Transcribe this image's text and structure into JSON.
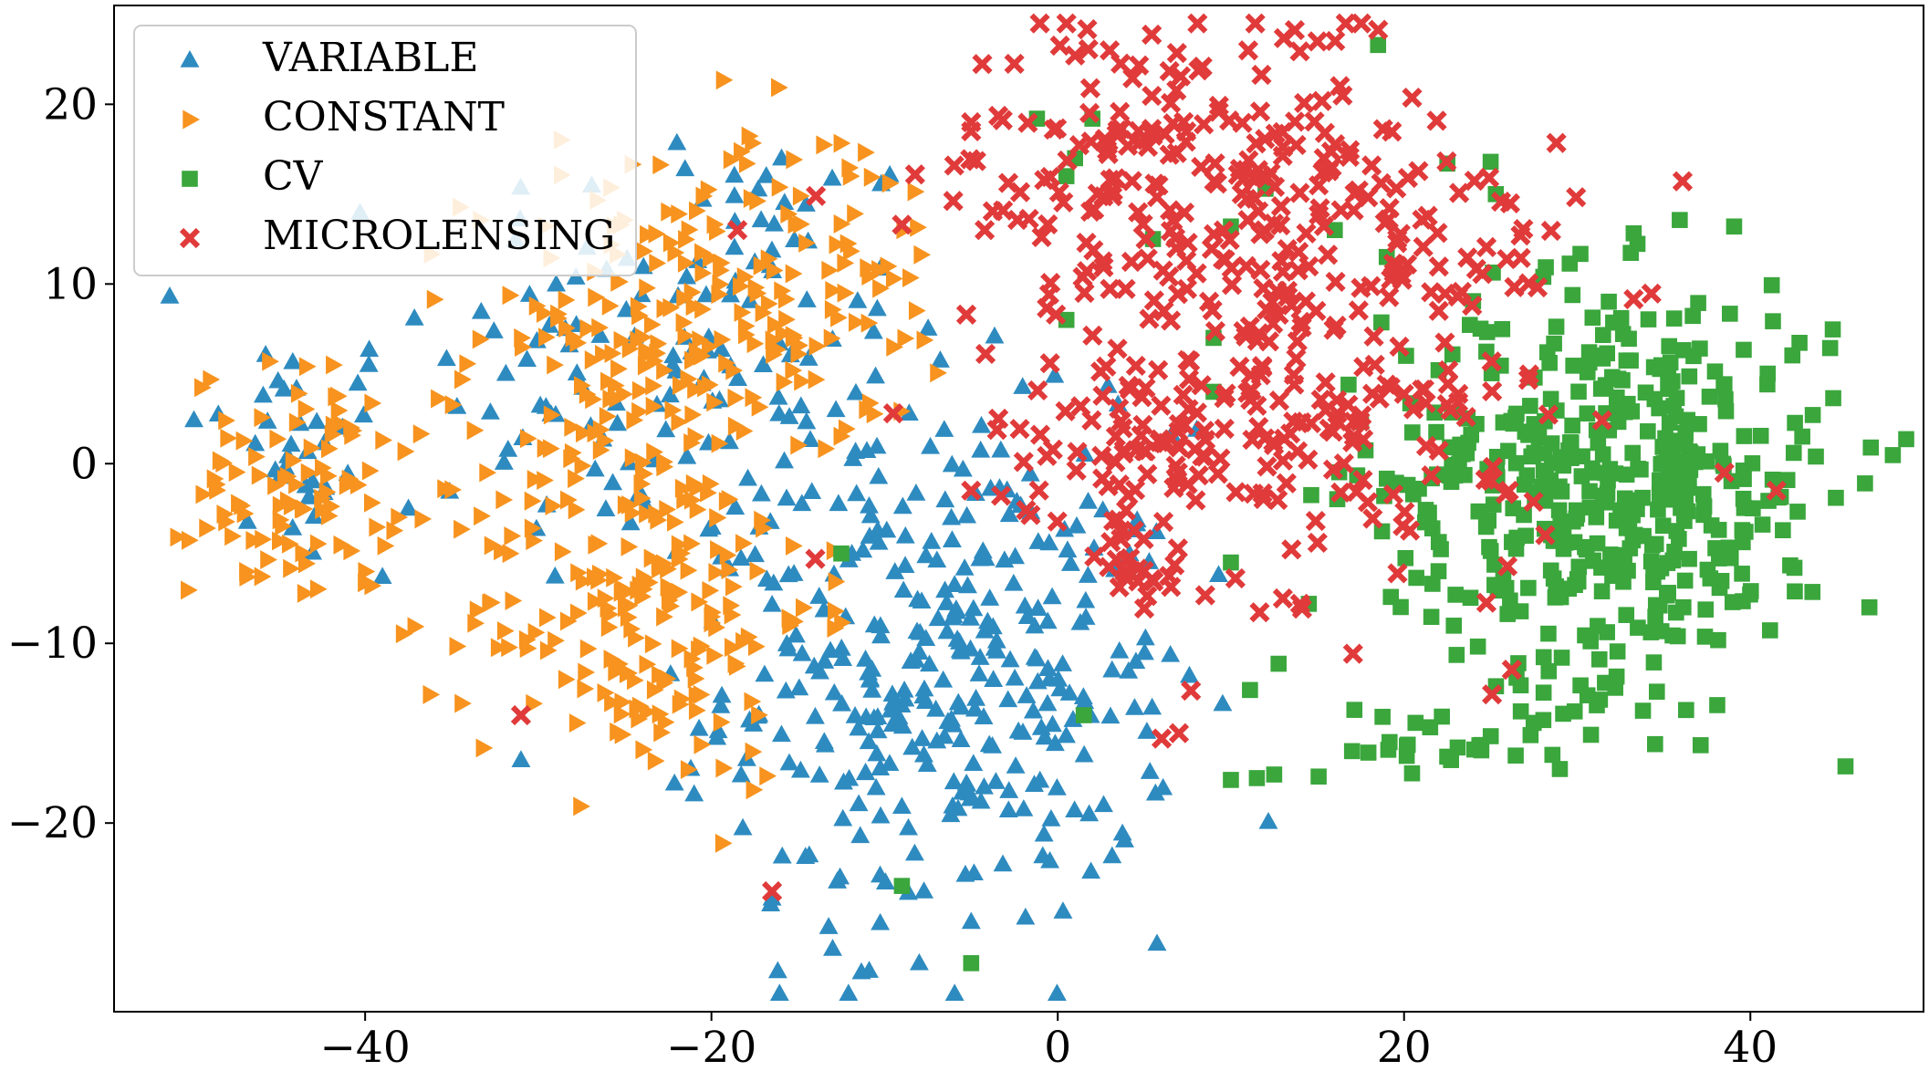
{
  "chart_data": {
    "type": "scatter",
    "title": "",
    "xlabel": "",
    "ylabel": "",
    "xlim": [
      -54.5,
      50
    ],
    "ylim": [
      -30.5,
      25.5
    ],
    "xticks": [
      -40,
      -20,
      0,
      20,
      40
    ],
    "yticks": [
      -20,
      -10,
      0,
      10,
      20
    ],
    "xtick_labels": [
      "−40",
      "−20",
      "0",
      "20",
      "40"
    ],
    "ytick_labels": [
      "−20",
      "−10",
      "0",
      "10",
      "20"
    ],
    "grid": false,
    "legend_position": "top-left",
    "series": [
      {
        "name": "VARIABLE",
        "marker": "triangle-up",
        "color": "#2e8bc0",
        "clusters": [
          {
            "cx": -44,
            "cy": 1,
            "sx": 3.2,
            "sy": 3.5,
            "n": 35
          },
          {
            "cx": -21,
            "cy": 6,
            "sx": 7.5,
            "sy": 7.0,
            "n": 140
          },
          {
            "cx": -6,
            "cy": -12,
            "sx": 6.5,
            "sy": 7.0,
            "n": 340
          }
        ],
        "points": [
          [
            -37.5,
            -2.5
          ],
          [
            -39,
            -6.3
          ],
          [
            -31,
            -16.5
          ],
          [
            -21,
            -18.4
          ],
          [
            -16.5,
            -24.2
          ],
          [
            -5,
            -25.5
          ],
          [
            -13,
            -27
          ],
          [
            -8,
            -27.8
          ]
        ]
      },
      {
        "name": "CONSTANT",
        "marker": "triangle-right",
        "color": "#f7931e",
        "clusters": [
          {
            "cx": -44,
            "cy": -1,
            "sx": 3.0,
            "sy": 3.2,
            "n": 95
          },
          {
            "cx": -23,
            "cy": 6,
            "sx": 5.5,
            "sy": 5.0,
            "n": 190
          },
          {
            "cx": -24,
            "cy": -8,
            "sx": 5.0,
            "sy": 5.0,
            "n": 190
          },
          {
            "cx": -14,
            "cy": 11,
            "sx": 4.5,
            "sy": 5.0,
            "n": 60
          }
        ],
        "points": [
          [
            -33,
            -0.5
          ],
          [
            -31,
            7
          ],
          [
            -40,
            -6
          ],
          [
            -18,
            16.7
          ],
          [
            -12,
            16
          ]
        ]
      },
      {
        "name": "CV",
        "marker": "square",
        "color": "#3aa63c",
        "clusters": [
          {
            "cx": 32,
            "cy": -1,
            "sx": 6.5,
            "sy": 5.5,
            "n": 470
          },
          {
            "cx": 23,
            "cy": -15.5,
            "sx": 4.0,
            "sy": 1.3,
            "n": 30
          }
        ],
        "points": [
          [
            18.5,
            23.3
          ],
          [
            22.5,
            16.7
          ],
          [
            25,
            16.8
          ],
          [
            25.3,
            15
          ],
          [
            19,
            11.5
          ],
          [
            12,
            15.3
          ],
          [
            10,
            13.2
          ],
          [
            5.5,
            12.5
          ],
          [
            0.5,
            16
          ],
          [
            1,
            17
          ],
          [
            -1.2,
            19.2
          ],
          [
            2,
            19.2
          ],
          [
            0.5,
            8
          ],
          [
            -12.5,
            -5
          ],
          [
            -9,
            -23.5
          ],
          [
            -5,
            -27.8
          ],
          [
            1.5,
            -14
          ],
          [
            10,
            -5.5
          ],
          [
            10,
            -17.6
          ],
          [
            11.5,
            -17.5
          ],
          [
            12.5,
            -17.3
          ],
          [
            14.5,
            -7.8
          ],
          [
            16,
            13
          ],
          [
            9,
            4
          ],
          [
            9,
            7
          ]
        ]
      },
      {
        "name": "MICROLENSING",
        "marker": "x",
        "color": "#e03a3a",
        "clusters": [
          {
            "cx": 7,
            "cy": 16,
            "sx": 7.0,
            "sy": 4.5,
            "n": 180
          },
          {
            "cx": 16,
            "cy": 7,
            "sx": 7.0,
            "sy": 7.5,
            "n": 240
          },
          {
            "cx": 6,
            "cy": 1,
            "sx": 5.0,
            "sy": 2.5,
            "n": 80
          },
          {
            "cx": 4,
            "cy": -6,
            "sx": 1.3,
            "sy": 1.3,
            "n": 18
          }
        ],
        "points": [
          [
            -5,
            18.5
          ],
          [
            -9,
            13.3
          ],
          [
            -18.5,
            13
          ],
          [
            -9.5,
            2.8
          ],
          [
            -5,
            -1.5
          ],
          [
            -14,
            -5.3
          ],
          [
            -31,
            -14
          ],
          [
            -16.5,
            -23.8
          ],
          [
            6,
            -15.3
          ],
          [
            7,
            -15
          ],
          [
            13,
            -7.5
          ],
          [
            14,
            -7.8
          ],
          [
            15,
            -4.4
          ],
          [
            38.5,
            -0.5
          ],
          [
            41.5,
            -1.5
          ],
          [
            11,
            23
          ],
          [
            15,
            23.5
          ],
          [
            3,
            23
          ],
          [
            -5,
            19
          ]
        ]
      }
    ]
  }
}
